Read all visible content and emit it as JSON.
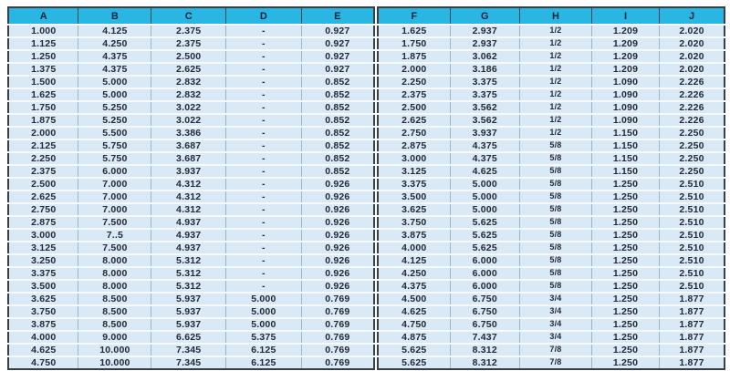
{
  "colors": {
    "header_bg": "#29b6e3",
    "header_text": "#0e2240",
    "row_bg": "#d9eaf6",
    "row_separator": "#f6fafd",
    "column_separator": "#9db4c6",
    "outer_border": "#3a3f44"
  },
  "table": {
    "headers": [
      "A",
      "B",
      "C",
      "D",
      "E",
      "F",
      "G",
      "H",
      "I",
      "J"
    ],
    "left_column_count": 5,
    "fraction_column_index": 7,
    "rows": [
      [
        "1.000",
        "4.125",
        "2.375",
        "-",
        "0.927",
        "1.625",
        "2.937",
        "1/2",
        "1.209",
        "2.020"
      ],
      [
        "1.125",
        "4.250",
        "2.375",
        "-",
        "0.927",
        "1.750",
        "2.937",
        "1/2",
        "1.209",
        "2.020"
      ],
      [
        "1.250",
        "4.375",
        "2.500",
        "-",
        "0.927",
        "1.875",
        "3.062",
        "1/2",
        "1.209",
        "2.020"
      ],
      [
        "1.375",
        "4.375",
        "2.625",
        "-",
        "0.927",
        "2.000",
        "3.186",
        "1/2",
        "1.209",
        "2.020"
      ],
      [
        "1.500",
        "5.000",
        "2.832",
        "-",
        "0.852",
        "2.250",
        "3.375",
        "1/2",
        "1.090",
        "2.226"
      ],
      [
        "1.625",
        "5.000",
        "2.832",
        "-",
        "0.852",
        "2.375",
        "3.375",
        "1/2",
        "1.090",
        "2.226"
      ],
      [
        "1.750",
        "5.250",
        "3.022",
        "-",
        "0.852",
        "2.500",
        "3.562",
        "1/2",
        "1.090",
        "2.226"
      ],
      [
        "1.875",
        "5.250",
        "3.022",
        "-",
        "0.852",
        "2.625",
        "3.562",
        "1/2",
        "1.090",
        "2.226"
      ],
      [
        "2.000",
        "5.500",
        "3.386",
        "-",
        "0.852",
        "2.750",
        "3.937",
        "1/2",
        "1.150",
        "2.250"
      ],
      [
        "2.125",
        "5.750",
        "3.687",
        "-",
        "0.852",
        "2.875",
        "4.375",
        "5/8",
        "1.150",
        "2.250"
      ],
      [
        "2.250",
        "5.750",
        "3.687",
        "-",
        "0.852",
        "3.000",
        "4.375",
        "5/8",
        "1.150",
        "2.250"
      ],
      [
        "2.375",
        "6.000",
        "3.937",
        "-",
        "0.852",
        "3.125",
        "4.625",
        "5/8",
        "1.150",
        "2.250"
      ],
      [
        "2.500",
        "7.000",
        "4.312",
        "-",
        "0.926",
        "3.375",
        "5.000",
        "5/8",
        "1.250",
        "2.510"
      ],
      [
        "2.625",
        "7.000",
        "4.312",
        "-",
        "0.926",
        "3.500",
        "5.000",
        "5/8",
        "1.250",
        "2.510"
      ],
      [
        "2.750",
        "7.000",
        "4.312",
        "-",
        "0.926",
        "3.625",
        "5.000",
        "5/8",
        "1.250",
        "2.510"
      ],
      [
        "2.875",
        "7.500",
        "4.937",
        "-",
        "0.926",
        "3.750",
        "5.625",
        "5/8",
        "1.250",
        "2.510"
      ],
      [
        "3.000",
        "7..5",
        "4.937",
        "-",
        "0.926",
        "3.875",
        "5.625",
        "5/8",
        "1.250",
        "2.510"
      ],
      [
        "3.125",
        "7.500",
        "4.937",
        "-",
        "0.926",
        "4.000",
        "5.625",
        "5/8",
        "1.250",
        "2.510"
      ],
      [
        "3.250",
        "8.000",
        "5.312",
        "-",
        "0.926",
        "4.125",
        "6.000",
        "5/8",
        "1.250",
        "2.510"
      ],
      [
        "3.375",
        "8.000",
        "5.312",
        "-",
        "0.926",
        "4.250",
        "6.000",
        "5/8",
        "1.250",
        "2.510"
      ],
      [
        "3.500",
        "8.000",
        "5.312",
        "-",
        "0.926",
        "4.375",
        "6.000",
        "5/8",
        "1.250",
        "2.510"
      ],
      [
        "3.625",
        "8.500",
        "5.937",
        "5.000",
        "0.769",
        "4.500",
        "6.750",
        "3/4",
        "1.250",
        "1.877"
      ],
      [
        "3.750",
        "8.500",
        "5.937",
        "5.000",
        "0.769",
        "4.625",
        "6.750",
        "3/4",
        "1.250",
        "1.877"
      ],
      [
        "3.875",
        "8.500",
        "5.937",
        "5.000",
        "0.769",
        "4.750",
        "6.750",
        "3/4",
        "1.250",
        "1.877"
      ],
      [
        "4.000",
        "9.000",
        "6.625",
        "5.375",
        "0.769",
        "4.875",
        "7.437",
        "3/4",
        "1.250",
        "1.877"
      ],
      [
        "4.625",
        "10.000",
        "7.345",
        "6.125",
        "0.769",
        "5.625",
        "8.312",
        "7/8",
        "1.250",
        "1.877"
      ],
      [
        "4.750",
        "10.000",
        "7.345",
        "6.125",
        "0.769",
        "5.625",
        "8.312",
        "7/8",
        "1.250",
        "1.877"
      ]
    ],
    "left_col_widths_pct": [
      19.2,
      19.9,
      20.4,
      20.6,
      19.9
    ],
    "right_col_widths_pct": [
      20.8,
      20.1,
      20.8,
      19.5,
      18.8
    ]
  }
}
